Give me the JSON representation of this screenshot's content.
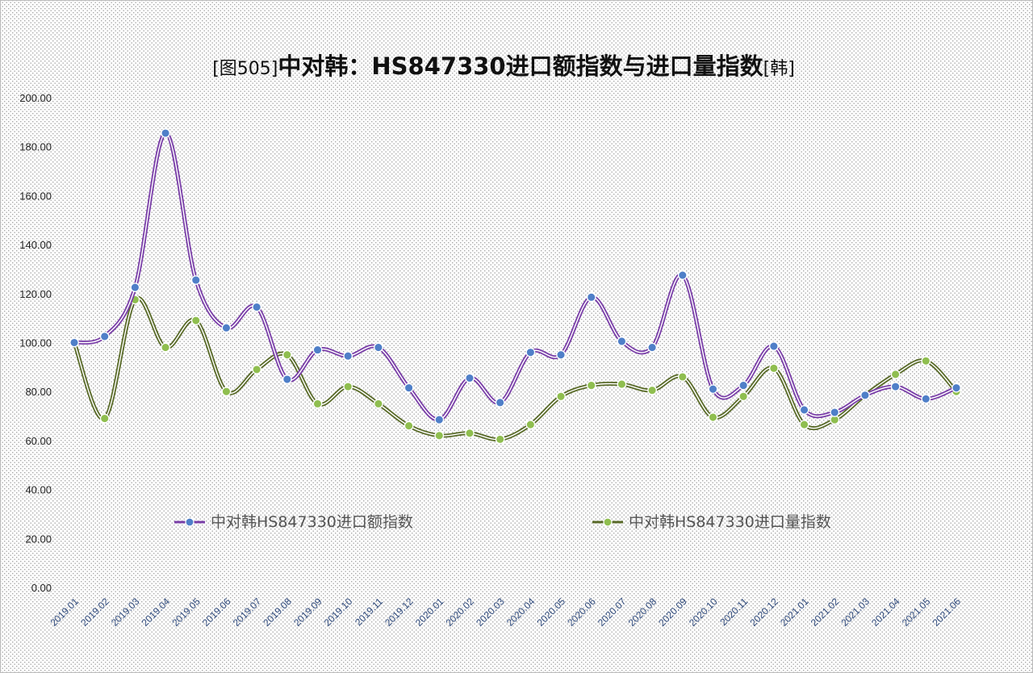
{
  "chart_data": {
    "type": "line",
    "title_prefix": "[图505]",
    "title_main": "中对韩：HS847330进口额指数与进口量指数",
    "title_suffix": "[韩]",
    "categories": [
      "2019.01",
      "2019.02",
      "2019.03",
      "2019.04",
      "2019.05",
      "2019.06",
      "2019.07",
      "2019.08",
      "2019.09",
      "2019.10",
      "2019.11",
      "2019.12",
      "2020.01",
      "2020.02",
      "2020.03",
      "2020.04",
      "2020.05",
      "2020.06",
      "2020.07",
      "2020.08",
      "2020.09",
      "2020.10",
      "2020.11",
      "2020.12",
      "2021.01",
      "2021.02",
      "2021.03",
      "2021.04",
      "2021.05",
      "2021.06"
    ],
    "ylim": [
      0,
      200
    ],
    "yticks": [
      "0.00",
      "20.00",
      "40.00",
      "60.00",
      "80.00",
      "100.00",
      "120.00",
      "140.00",
      "160.00",
      "180.00",
      "200.00"
    ],
    "series": [
      {
        "name": "中对韩HS847330进口额指数",
        "line_color": "#7a3fa8",
        "marker_color": "#4f7fc8",
        "values": [
          100,
          102.5,
          122.5,
          185.5,
          125.5,
          106,
          114.5,
          85,
          97,
          94.5,
          98,
          81.5,
          68.5,
          85.5,
          75.5,
          96,
          95,
          118.5,
          100.5,
          98,
          127.5,
          81,
          82.5,
          98.5,
          72.5,
          71.5,
          78.5,
          82,
          77,
          81.5
        ]
      },
      {
        "name": "中对韩HS847330进口量指数",
        "line_color": "#5a6b2a",
        "marker_color": "#8fbe4f",
        "values": [
          100,
          69,
          117.5,
          98,
          109,
          80,
          89,
          95,
          75,
          82,
          75,
          66,
          62,
          63,
          60.5,
          66.5,
          78,
          82.5,
          83,
          80.5,
          86,
          69.5,
          78,
          89.5,
          66.5,
          68.5,
          78.5,
          87,
          92.5,
          80
        ]
      }
    ],
    "grid": false,
    "legend_position": "inside-bottom"
  }
}
